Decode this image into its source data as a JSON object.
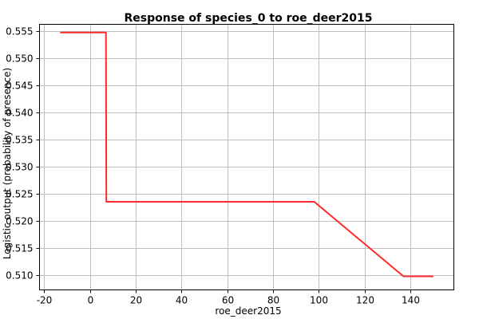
{
  "chart_data": {
    "type": "line",
    "title": "Response of species_0 to roe_deer2015",
    "xlabel": "roe_deer2015",
    "ylabel": "Logistic output (probability of presence)",
    "xlim": [
      -22,
      159
    ],
    "ylim": [
      0.5072,
      0.5563
    ],
    "x_ticks": [
      -20,
      0,
      20,
      40,
      60,
      80,
      100,
      120,
      140
    ],
    "x_tick_labels": [
      "-20",
      "0",
      "20",
      "40",
      "60",
      "80",
      "100",
      "120",
      "140"
    ],
    "y_ticks": [
      0.51,
      0.515,
      0.52,
      0.525,
      0.53,
      0.535,
      0.54,
      0.545,
      0.55,
      0.555
    ],
    "y_tick_labels": [
      "0.510",
      "0.515",
      "0.520",
      "0.525",
      "0.530",
      "0.535",
      "0.540",
      "0.545",
      "0.550",
      "0.555"
    ],
    "grid": true,
    "series": [
      {
        "color": "#ff2a2a",
        "x": [
          -13,
          7,
          7.2,
          98,
          137,
          150
        ],
        "y": [
          0.5548,
          0.5548,
          0.5235,
          0.5235,
          0.5097,
          0.5097
        ]
      }
    ]
  }
}
